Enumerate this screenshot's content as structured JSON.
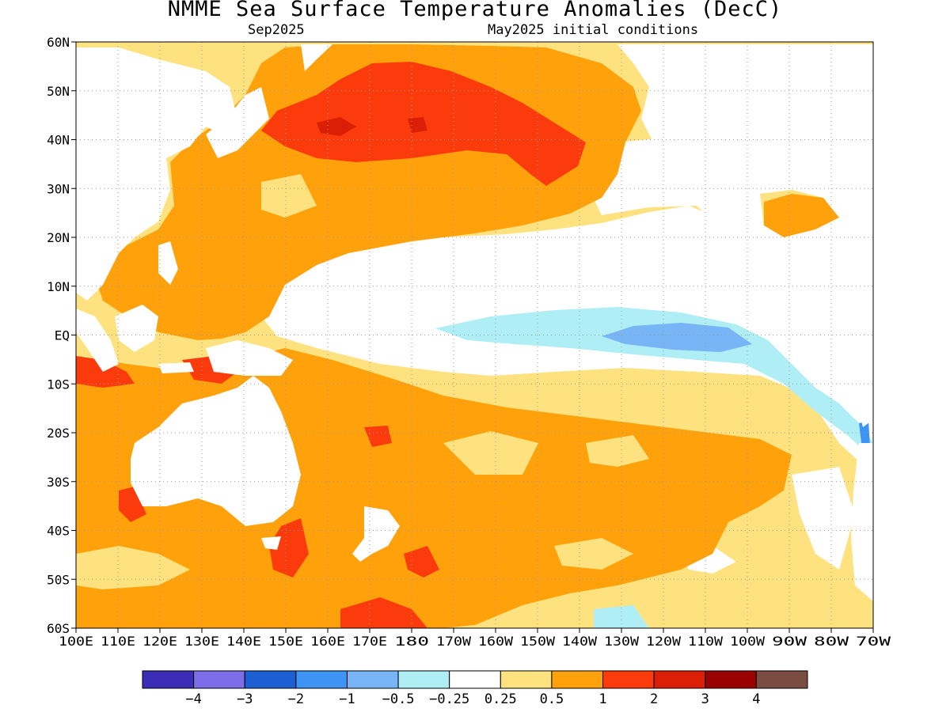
{
  "header": {
    "title": "NMME Sea Surface Temperature Anomalies (DecC)",
    "valid_month": "Sep2025",
    "initial_conditions": "May2025 initial conditions"
  },
  "map": {
    "lon_range": [
      100,
      290
    ],
    "lat_range": [
      -60,
      60
    ],
    "lat_labels": [
      "60N",
      "50N",
      "40N",
      "30N",
      "20N",
      "10N",
      "EQ",
      "10S",
      "20S",
      "30S",
      "40S",
      "50S",
      "60S"
    ],
    "lon_labels": [
      "100E",
      "110E",
      "120E",
      "130E",
      "140E",
      "150E",
      "160E",
      "170E",
      "180",
      "170W",
      "160W",
      "150W",
      "140W",
      "130W",
      "120W",
      "110W",
      "100W",
      "90W",
      "80W",
      "70W"
    ],
    "gridlines": true
  },
  "colorbar": {
    "colors": [
      "#3b2db5",
      "#7e6de8",
      "#1b5fd2",
      "#3d94f5",
      "#77b5f7",
      "#b0eef6",
      "#ffffff",
      "#fde27f",
      "#fea10a",
      "#fc3b0d",
      "#db1e06",
      "#9a0101",
      "#7a4c42"
    ],
    "labels": [
      "−4",
      "−3",
      "−2",
      "−1",
      "−0.5",
      "−0.25",
      "0.25",
      "0.5",
      "1",
      "2",
      "3",
      "4"
    ]
  },
  "colors": {
    "land": "#ffffff",
    "coast": "#000000",
    "band_0_25_0_5": "#fde27f",
    "band_0_5_1": "#fea10a",
    "band_1_2": "#fc3b0d",
    "band_2_3": "#db1e06",
    "band_neg_0_25": "#b0eef6",
    "band_neg_0_5": "#77b5f7",
    "band_neg_1": "#3d94f5"
  }
}
